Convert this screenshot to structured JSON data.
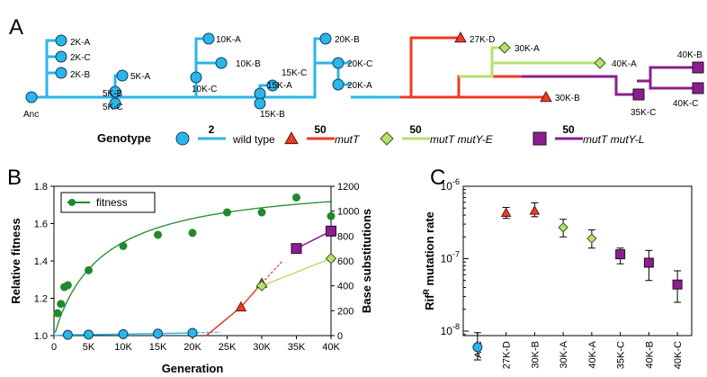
{
  "panel_letters": {
    "a": "A",
    "b": "B",
    "c": "C"
  },
  "colors": {
    "wild_type": "#29b6e8",
    "mutT": "#ee3a24",
    "mutY_E": "#b5e06f",
    "mutY_L": "#8a1f8e",
    "fitness": "#1f8a2b",
    "axis_green": "#2aa62a"
  },
  "tree": {
    "nodes": [
      {
        "label": "Anc",
        "marker": "circle",
        "group": "wild_type"
      },
      {
        "label": "2K-A",
        "marker": "circle",
        "group": "wild_type"
      },
      {
        "label": "2K-C",
        "marker": "circle",
        "group": "wild_type"
      },
      {
        "label": "2K-B",
        "marker": "circle",
        "group": "wild_type"
      },
      {
        "label": "5K-A",
        "marker": "circle",
        "group": "wild_type"
      },
      {
        "label": "5K-B",
        "marker": "circle",
        "group": "wild_type"
      },
      {
        "label": "5K-C",
        "marker": "circle",
        "group": "wild_type"
      },
      {
        "label": "10K-A",
        "marker": "circle",
        "group": "wild_type"
      },
      {
        "label": "10K-B",
        "marker": "circle",
        "group": "wild_type"
      },
      {
        "label": "10K-C",
        "marker": "circle",
        "group": "wild_type"
      },
      {
        "label": "15K-C",
        "marker": "circle",
        "group": "wild_type"
      },
      {
        "label": "15K-A",
        "marker": "circle",
        "group": "wild_type"
      },
      {
        "label": "15K-B",
        "marker": "circle",
        "group": "wild_type"
      },
      {
        "label": "20K-B",
        "marker": "circle",
        "group": "wild_type"
      },
      {
        "label": "20K-C",
        "marker": "circle",
        "group": "wild_type"
      },
      {
        "label": "20K-A",
        "marker": "circle",
        "group": "wild_type"
      },
      {
        "label": "27K-D",
        "marker": "triangle",
        "group": "mutT"
      },
      {
        "label": "30K-A",
        "marker": "diamond",
        "group": "mutY_E"
      },
      {
        "label": "40K-A",
        "marker": "diamond",
        "group": "mutY_E"
      },
      {
        "label": "30K-B",
        "marker": "triangle",
        "group": "mutT"
      },
      {
        "label": "40K-B",
        "marker": "square",
        "group": "mutY_L"
      },
      {
        "label": "35K-C",
        "marker": "square",
        "group": "mutY_L"
      },
      {
        "label": "40K-C",
        "marker": "square",
        "group": "mutY_L"
      }
    ],
    "legend": {
      "title": "Genotype",
      "items": [
        {
          "marker": "circle",
          "group": "wild_type",
          "scale": "2",
          "label": "wild type"
        },
        {
          "marker": "triangle",
          "group": "mutT",
          "scale": "50",
          "label": "mutT"
        },
        {
          "marker": "diamond",
          "group": "mutY_E",
          "scale": "50",
          "label": "mutT mutY-E"
        },
        {
          "marker": "square",
          "group": "mutY_L",
          "scale": "50",
          "label": "mutT mutY-L"
        }
      ]
    }
  },
  "chart_data": [
    {
      "type": "scatter",
      "panel": "B",
      "xlabel": "Generation",
      "ylabel": "Relative fitness",
      "y2label": "Base substitutions",
      "xlim": [
        0,
        40000
      ],
      "ylim": [
        1.0,
        1.8
      ],
      "y2lim": [
        0,
        1200
      ],
      "x_ticks": [
        "0",
        "5K",
        "10K",
        "15K",
        "20K",
        "25K",
        "30K",
        "35K",
        "40K"
      ],
      "y_ticks": [
        "1.0",
        "1.2",
        "1.4",
        "1.6",
        "1.8"
      ],
      "y2_ticks": [
        "0",
        "200",
        "400",
        "600",
        "800",
        "1000",
        "1200"
      ],
      "legend": {
        "label": "fitness",
        "placement": "top-left"
      },
      "fitness": {
        "x": [
          500,
          1000,
          1500,
          2000,
          5000,
          10000,
          15000,
          20000,
          25000,
          30000,
          35000,
          40000
        ],
        "y": [
          1.12,
          1.17,
          1.26,
          1.27,
          1.35,
          1.48,
          1.54,
          1.55,
          1.66,
          1.66,
          1.74,
          1.64
        ]
      },
      "fitness_curve": {
        "asymptote_form": "hyperbolic",
        "y_at_40000": 1.69
      },
      "substitutions": [
        {
          "group": "wild_type",
          "x": [
            0,
            2000,
            5000,
            10000,
            15000,
            20000
          ],
          "y": [
            0,
            6,
            8,
            12,
            16,
            22
          ]
        },
        {
          "group": "mutT",
          "x": [
            27000,
            30000
          ],
          "y": [
            230,
            420
          ]
        },
        {
          "group": "mutY_E",
          "x": [
            30000,
            40000
          ],
          "y": [
            400,
            620
          ]
        },
        {
          "group": "mutY_L",
          "x": [
            35000,
            40000
          ],
          "y": [
            700,
            840
          ]
        }
      ]
    },
    {
      "type": "scatter",
      "panel": "C",
      "ylabel_main": "Rif",
      "ylabel_sup": "R",
      "ylabel_rest": " mutation rate",
      "scale": "log",
      "y_ticks": [
        {
          "base": "10",
          "exp": "-6"
        },
        {
          "base": "10",
          "exp": "-7"
        },
        {
          "base": "10",
          "exp": "-8"
        }
      ],
      "categories": [
        "Anc",
        "27K-D",
        "30K-B",
        "30K-A",
        "40K-A",
        "35K-C",
        "40K-B",
        "40K-C"
      ],
      "groups": [
        "wild_type",
        "mutT",
        "mutT",
        "mutY_E",
        "mutY_E",
        "mutY_L",
        "mutY_L",
        "mutY_L"
      ],
      "values": [
        6e-09,
        4.3e-07,
        4.6e-07,
        2.7e-07,
        1.9e-07,
        1.15e-07,
        8.8e-08,
        4.4e-08
      ],
      "err_low": [
        4e-09,
        3.6e-07,
        3.8e-07,
        2e-07,
        1.4e-07,
        8.5e-08,
        5e-08,
        2.5e-08
      ],
      "err_high": [
        9.5e-09,
        5.1e-07,
        5.9e-07,
        3.5e-07,
        2.5e-07,
        1.4e-07,
        1.3e-07,
        6.8e-08
      ]
    }
  ]
}
